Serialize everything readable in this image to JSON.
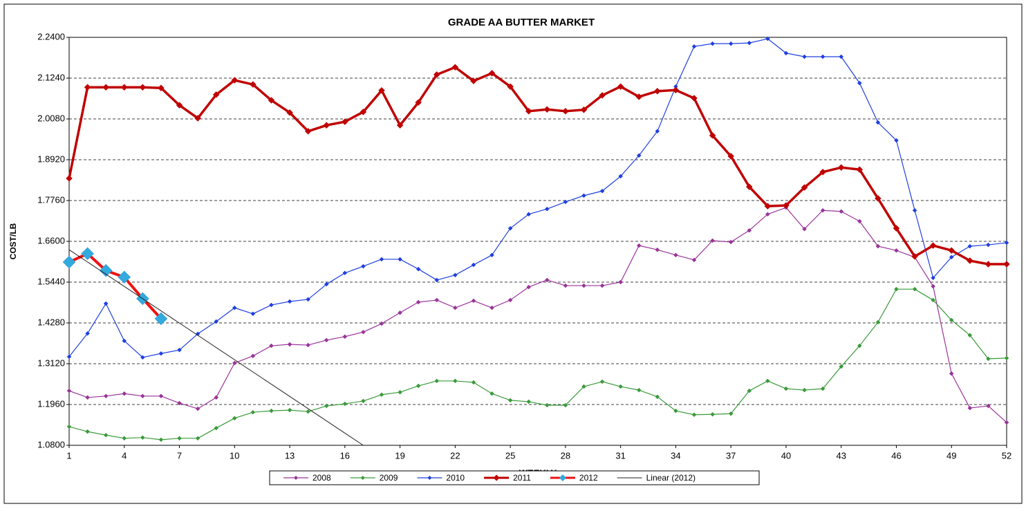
{
  "chart_data": {
    "type": "line",
    "title": "GRADE AA BUTTER MARKET",
    "x_label": "WEEKLY",
    "y_label": "COST/LB",
    "x": [
      1,
      2,
      3,
      4,
      5,
      6,
      7,
      8,
      9,
      10,
      11,
      12,
      13,
      14,
      15,
      16,
      17,
      18,
      19,
      20,
      21,
      22,
      23,
      24,
      25,
      26,
      27,
      28,
      29,
      30,
      31,
      32,
      33,
      34,
      35,
      36,
      37,
      38,
      39,
      40,
      41,
      42,
      43,
      44,
      45,
      46,
      47,
      48,
      49,
      50,
      51,
      52
    ],
    "xlim": [
      1,
      52
    ],
    "xticks": [
      1,
      4,
      7,
      10,
      13,
      16,
      19,
      22,
      25,
      28,
      31,
      34,
      37,
      40,
      43,
      46,
      49,
      52
    ],
    "ylim": [
      1.08,
      2.24
    ],
    "yticks": [
      {
        "value": 1.08,
        "label": "1.0800"
      },
      {
        "value": 1.196,
        "label": "1.1960"
      },
      {
        "value": 1.312,
        "label": "1.3120"
      },
      {
        "value": 1.428,
        "label": "1.4280"
      },
      {
        "value": 1.544,
        "label": "1.5440"
      },
      {
        "value": 1.66,
        "label": "1.6600"
      },
      {
        "value": 1.776,
        "label": "1.7760"
      },
      {
        "value": 1.892,
        "label": "1.8920"
      },
      {
        "value": 2.008,
        "label": "2.0080"
      },
      {
        "value": 2.124,
        "label": "2.1240"
      },
      {
        "value": 2.24,
        "label": "2.2400"
      }
    ],
    "grid": true,
    "legend": "bottom",
    "series": [
      {
        "name": "2008",
        "color": "#993399",
        "values": [
          1.235,
          1.216,
          1.22,
          1.227,
          1.22,
          1.22,
          1.2,
          1.184,
          1.216,
          1.314,
          1.334,
          1.363,
          1.367,
          1.365,
          1.379,
          1.389,
          1.402,
          1.426,
          1.457,
          1.487,
          1.493,
          1.471,
          1.491,
          1.471,
          1.493,
          1.53,
          1.55,
          1.534,
          1.534,
          1.534,
          1.544,
          1.648,
          1.636,
          1.621,
          1.607,
          1.662,
          1.658,
          1.691,
          1.737,
          1.756,
          1.695,
          1.748,
          1.745,
          1.717,
          1.646,
          1.634,
          1.615,
          1.532,
          1.284,
          1.186,
          1.192,
          1.145
        ]
      },
      {
        "name": "2009",
        "color": "#3a9a3a",
        "values": [
          1.133,
          1.119,
          1.109,
          1.1,
          1.102,
          1.096,
          1.1,
          1.1,
          1.129,
          1.157,
          1.174,
          1.178,
          1.18,
          1.176,
          1.192,
          1.198,
          1.206,
          1.224,
          1.231,
          1.249,
          1.263,
          1.263,
          1.259,
          1.227,
          1.208,
          1.204,
          1.194,
          1.194,
          1.247,
          1.261,
          1.247,
          1.237,
          1.218,
          1.178,
          1.167,
          1.168,
          1.17,
          1.235,
          1.263,
          1.241,
          1.237,
          1.241,
          1.304,
          1.363,
          1.43,
          1.524,
          1.524,
          1.493,
          1.436,
          1.393,
          1.326,
          1.328
        ]
      },
      {
        "name": "2010",
        "color": "#1f3fe0",
        "values": [
          1.332,
          1.398,
          1.483,
          1.377,
          1.33,
          1.341,
          1.351,
          1.397,
          1.432,
          1.471,
          1.454,
          1.479,
          1.489,
          1.495,
          1.538,
          1.57,
          1.589,
          1.609,
          1.609,
          1.581,
          1.55,
          1.564,
          1.593,
          1.621,
          1.697,
          1.737,
          1.752,
          1.772,
          1.79,
          1.803,
          1.845,
          1.904,
          1.973,
          2.1,
          2.214,
          2.222,
          2.222,
          2.224,
          2.236,
          2.195,
          2.185,
          2.185,
          2.185,
          2.11,
          1.998,
          1.947,
          1.748,
          1.556,
          1.615,
          1.646,
          1.65,
          1.656
        ]
      },
      {
        "name": "2011",
        "color": "#c00000",
        "values": [
          1.839,
          2.098,
          2.098,
          2.098,
          2.098,
          2.096,
          2.047,
          2.01,
          2.077,
          2.118,
          2.106,
          2.061,
          2.026,
          1.973,
          1.99,
          2.0,
          2.028,
          2.089,
          1.99,
          2.055,
          2.134,
          2.155,
          2.116,
          2.138,
          2.1,
          2.03,
          2.035,
          2.03,
          2.034,
          2.075,
          2.1,
          2.071,
          2.087,
          2.09,
          2.067,
          1.961,
          1.902,
          1.815,
          1.76,
          1.762,
          1.813,
          1.857,
          1.87,
          1.864,
          1.782,
          1.697,
          1.617,
          1.648,
          1.634,
          1.605,
          1.595,
          1.595
        ]
      },
      {
        "name": "2012",
        "color": "#ee1111",
        "values": [
          1.601,
          1.625,
          1.577,
          1.558,
          1.497,
          1.44,
          null,
          null,
          null,
          null,
          null,
          null,
          null,
          null,
          null,
          null,
          null,
          null,
          null,
          null,
          null,
          null,
          null,
          null,
          null,
          null,
          null,
          null,
          null,
          null,
          null,
          null,
          null,
          null,
          null,
          null,
          null,
          null,
          null,
          null,
          null,
          null,
          null,
          null,
          null,
          null,
          null,
          null,
          null,
          null,
          null,
          null
        ]
      },
      {
        "name": "Linear (2012)",
        "color": "#222222",
        "x": [
          1,
          17
        ],
        "values": [
          1.636,
          1.08
        ]
      }
    ]
  }
}
